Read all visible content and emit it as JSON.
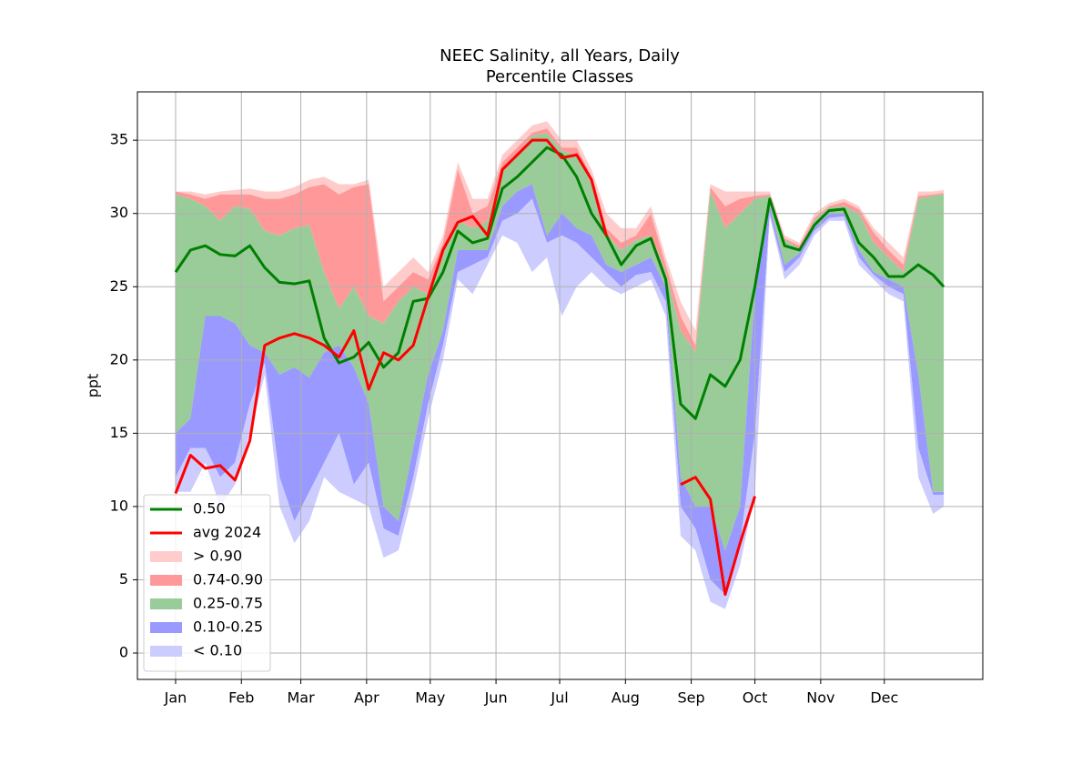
{
  "chart_data": {
    "type": "band",
    "title": "NEEC Salinity, all Years, Daily",
    "subtitle": "Percentile Classes",
    "y_label": "ppt",
    "x": [
      0,
      7,
      14,
      21,
      28,
      35,
      42,
      49,
      56,
      63,
      70,
      77,
      84,
      91,
      98,
      105,
      112,
      119,
      126,
      133,
      140,
      147,
      154,
      161,
      168,
      175,
      182,
      189,
      196,
      203,
      210,
      217,
      224,
      231,
      238,
      245,
      252,
      259,
      266,
      273,
      280,
      287,
      294,
      301,
      308,
      315,
      322,
      329,
      336,
      343,
      350,
      357,
      362
    ],
    "xlim": [
      -18,
      380.4
    ],
    "xticks": [
      {
        "value": 0,
        "label": "Jan"
      },
      {
        "value": 31,
        "label": "Feb"
      },
      {
        "value": 59,
        "label": "Mar"
      },
      {
        "value": 90,
        "label": "Apr"
      },
      {
        "value": 120,
        "label": "May"
      },
      {
        "value": 151,
        "label": "Jun"
      },
      {
        "value": 181,
        "label": "Jul"
      },
      {
        "value": 212,
        "label": "Aug"
      },
      {
        "value": 243,
        "label": "Sep"
      },
      {
        "value": 273,
        "label": "Oct"
      },
      {
        "value": 304,
        "label": "Nov"
      },
      {
        "value": 334,
        "label": "Dec"
      }
    ],
    "ylim": [
      -1.8,
      38.3
    ],
    "yticks": [
      0,
      5,
      10,
      15,
      20,
      25,
      30,
      35
    ],
    "grid": true,
    "legend": "lower left",
    "lines": [
      {
        "name": "0.50",
        "color": "#008000",
        "values": [
          26,
          27.5,
          27.8,
          27.2,
          27.1,
          27.8,
          26.3,
          25.3,
          25.2,
          25.4,
          21.5,
          19.8,
          20.2,
          21.2,
          19.5,
          20.5,
          24,
          24.2,
          26,
          28.8,
          28,
          28.3,
          31.7,
          32.5,
          33.5,
          34.5,
          34,
          32.5,
          30,
          28.5,
          26.5,
          27.8,
          28.3,
          25.5,
          17,
          16,
          19,
          18.2,
          20,
          25,
          31,
          27.8,
          27.5,
          29.2,
          30.2,
          30.3,
          28,
          27,
          25.7,
          25.7,
          26.5,
          25.8,
          25
        ]
      },
      {
        "name": "avg 2024",
        "color": "#ff0000",
        "values": [
          10.9,
          13.5,
          12.6,
          12.8,
          11.8,
          14.5,
          21,
          21.5,
          21.8,
          21.5,
          21,
          20.2,
          22,
          18,
          20.5,
          20,
          21,
          24.3,
          27.5,
          29.4,
          29.8,
          28.5,
          33,
          34,
          35,
          35,
          33.8,
          34,
          32.3,
          28.5,
          null,
          null,
          null,
          null,
          11.5,
          12,
          10.5,
          4,
          7.5,
          10.7,
          null,
          null,
          null,
          null,
          null,
          null,
          null,
          null,
          null,
          null,
          null,
          null,
          null
        ]
      }
    ],
    "bands": [
      {
        "name": "> 0.90",
        "color": "#ffcccc",
        "high": [
          31.5,
          31.5,
          31.3,
          31.5,
          31.6,
          31.7,
          31.5,
          31.5,
          31.8,
          32.3,
          32.5,
          32,
          32,
          32.3,
          25,
          26,
          27,
          26,
          28.5,
          33.5,
          31,
          31,
          34,
          35,
          36,
          36.3,
          35,
          35,
          33,
          30,
          29,
          29,
          30.5,
          27,
          24,
          22,
          32,
          31.5,
          31.5,
          31.5,
          31.5,
          28.5,
          28,
          30,
          30.7,
          31,
          30.5,
          29,
          28,
          27,
          31.5,
          31.5,
          31.6
        ],
        "low": [
          31.5,
          31.3,
          31,
          31.3,
          31.3,
          31.3,
          31,
          31,
          31.3,
          31.8,
          32,
          31.3,
          31.8,
          32,
          24,
          25,
          26,
          25.5,
          28,
          33,
          30,
          30.5,
          33.5,
          34.5,
          35.5,
          35.8,
          34.5,
          34.5,
          32.5,
          29,
          28,
          28.5,
          30,
          26.5,
          23,
          21,
          31.8,
          30.5,
          31,
          31.2,
          31.3,
          28.3,
          27.8,
          29.7,
          30.5,
          30.8,
          30.3,
          28.7,
          27.5,
          26.5,
          31.2,
          31.3,
          31.4
        ]
      },
      {
        "name": "0.74-0.90",
        "color": "#ff9999",
        "high": [
          31.5,
          31.3,
          31,
          31.3,
          31.3,
          31.3,
          31,
          31,
          31.3,
          31.8,
          32,
          31.3,
          31.8,
          32,
          24,
          25,
          26,
          25.5,
          28,
          33,
          30,
          30.5,
          33.5,
          34.5,
          35.5,
          35.8,
          34.5,
          34.5,
          32.5,
          29,
          28,
          28.5,
          30,
          26.5,
          23,
          21,
          31.8,
          30.5,
          31,
          31.2,
          31.3,
          28.3,
          27.8,
          29.7,
          30.5,
          30.8,
          30.3,
          28.7,
          27.5,
          26.5,
          31.2,
          31.3,
          31.4
        ],
        "low": [
          31.3,
          31,
          30.5,
          29.5,
          30.5,
          30.3,
          28.8,
          28.5,
          29,
          29.2,
          26,
          23.5,
          25,
          23,
          22.5,
          24,
          25,
          24.5,
          27.5,
          29.5,
          29,
          29.5,
          33,
          34,
          35.3,
          35.5,
          34.3,
          34,
          32,
          28.5,
          27.5,
          28.2,
          28.5,
          26,
          22,
          20.5,
          31.5,
          29,
          30,
          31,
          31.2,
          28.2,
          27.6,
          29.5,
          30.4,
          30.5,
          30,
          28,
          27,
          26,
          31,
          31.2,
          31.3
        ]
      },
      {
        "name": "0.25-0.75",
        "color": "#99cc99",
        "high": [
          31.3,
          31,
          30.5,
          29.5,
          30.5,
          30.3,
          28.8,
          28.5,
          29,
          29.2,
          26,
          23.5,
          25,
          23,
          22.5,
          24,
          25,
          24.5,
          27.5,
          29.5,
          29,
          29.5,
          33,
          34,
          35.3,
          35.5,
          34.3,
          34,
          32,
          28.5,
          27.5,
          28.2,
          28.5,
          26,
          22,
          20.5,
          31.5,
          29,
          30,
          31,
          31.2,
          28.2,
          27.6,
          29.5,
          30.4,
          30.5,
          30,
          28,
          27,
          26,
          31,
          31.2,
          31.3
        ],
        "low": [
          15,
          16,
          23,
          23,
          22.5,
          21,
          20.5,
          19,
          19.5,
          18.8,
          20.5,
          21,
          19.5,
          17,
          10,
          9,
          14,
          19,
          22,
          27.5,
          27.5,
          27.5,
          30.5,
          31.5,
          32,
          28.5,
          30,
          29,
          28.5,
          26.5,
          26,
          26.5,
          27,
          25,
          12,
          10,
          10,
          7,
          10,
          24.5,
          30.5,
          26.5,
          27.3,
          29,
          30,
          30,
          27.5,
          26,
          25.5,
          25,
          19,
          11,
          11
        ]
      },
      {
        "name": "0.10-0.25",
        "color": "#9999ff",
        "high": [
          15,
          16,
          23,
          23,
          22.5,
          21,
          20.5,
          19,
          19.5,
          18.8,
          20.5,
          21,
          19.5,
          17,
          10,
          9,
          14,
          19,
          22,
          27.5,
          27.5,
          27.5,
          30.5,
          31.5,
          32,
          28.5,
          30,
          29,
          28.5,
          26.5,
          26,
          26.5,
          27,
          25,
          12,
          10,
          10,
          7,
          10,
          24.5,
          30.5,
          26.5,
          27.3,
          29,
          30,
          30,
          27.5,
          26,
          25.5,
          25,
          19,
          11,
          11
        ],
        "low": [
          12,
          14,
          14,
          12,
          13,
          17,
          19.8,
          12,
          9,
          11,
          13,
          15,
          11.5,
          13,
          8.5,
          8,
          12,
          17,
          21,
          26,
          26.5,
          27,
          29.5,
          30,
          31,
          28,
          28.5,
          28,
          27,
          26,
          25,
          25.8,
          26,
          24,
          10,
          8.5,
          5,
          4,
          7.5,
          15,
          30,
          26,
          27,
          28.8,
          29.7,
          29.8,
          27,
          25.8,
          25,
          24.5,
          14,
          10.8,
          10.8
        ]
      },
      {
        "name": "< 0.10",
        "color": "#ccccff",
        "high": [
          12,
          14,
          14,
          12,
          13,
          17,
          19.8,
          12,
          9,
          11,
          13,
          15,
          11.5,
          13,
          8.5,
          8,
          12,
          17,
          21,
          26,
          26.5,
          27,
          29.5,
          30,
          31,
          28,
          28.5,
          28,
          27,
          26,
          25,
          25.8,
          26,
          24,
          10,
          8.5,
          5,
          4,
          7.5,
          15,
          30,
          26,
          27,
          28.8,
          29.7,
          29.8,
          27,
          25.8,
          25,
          24.5,
          14,
          10.8,
          10.8
        ],
        "low": [
          11,
          11,
          13,
          10,
          11.5,
          15,
          19,
          10,
          7.5,
          9,
          12,
          11,
          10.5,
          10,
          6.5,
          7,
          11,
          16,
          20,
          25.5,
          24.5,
          26.5,
          28.5,
          28,
          26,
          27,
          23,
          25,
          26,
          25,
          24.5,
          25,
          25.5,
          23,
          8,
          7,
          3.5,
          3,
          6,
          11,
          29.8,
          25.5,
          26.5,
          28.5,
          29.5,
          29.5,
          26.5,
          25.5,
          24.5,
          24,
          12,
          9.5,
          10
        ]
      }
    ]
  }
}
